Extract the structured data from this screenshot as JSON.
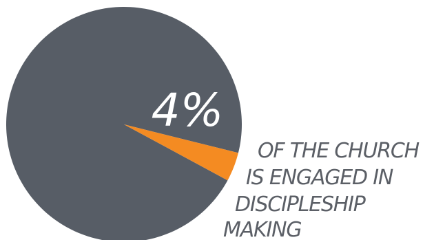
{
  "chart_data": {
    "type": "pie",
    "slices": [
      {
        "label": "",
        "value": 96,
        "color": "#575d66"
      },
      {
        "label": "",
        "value": 4,
        "color": "#f48b22"
      }
    ],
    "data_label": "4%",
    "annotation_lines": [
      "OF THE CHURCH",
      "IS ENGAGED IN",
      "DISCIPLESHIP",
      "MAKING"
    ]
  }
}
